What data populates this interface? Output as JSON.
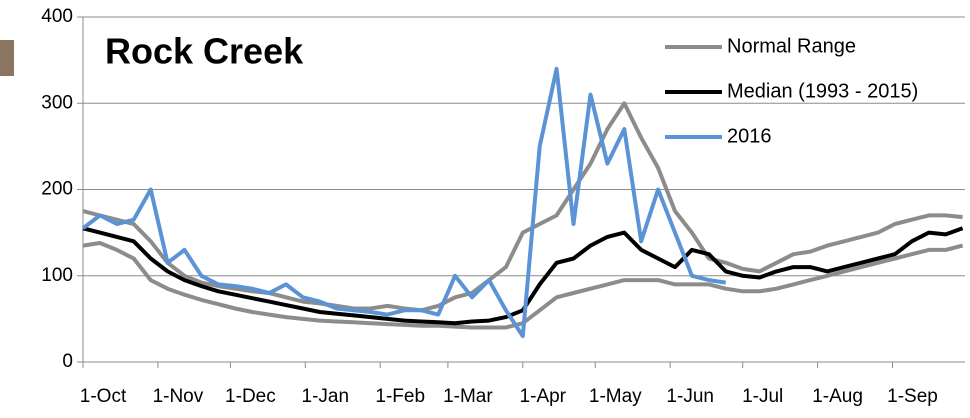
{
  "chart_data": {
    "type": "line",
    "title": "Rock Creek",
    "x": [
      0,
      7,
      14,
      21,
      28,
      35,
      42,
      49,
      56,
      63,
      70,
      77,
      84,
      91,
      98,
      105,
      112,
      119,
      126,
      133,
      140,
      147,
      154,
      161,
      168,
      175,
      182,
      189,
      196,
      203,
      210,
      217,
      224,
      231,
      238,
      245,
      252,
      259,
      266,
      273,
      280,
      287,
      294,
      301,
      308,
      315,
      322,
      329,
      336,
      343,
      350,
      357,
      364
    ],
    "xlim": [
      0,
      365
    ],
    "xticks": [
      {
        "value": 0,
        "label": "1-Oct"
      },
      {
        "value": 31,
        "label": "1-Nov"
      },
      {
        "value": 61,
        "label": "1-Dec"
      },
      {
        "value": 92,
        "label": "1-Jan"
      },
      {
        "value": 123,
        "label": "1-Feb"
      },
      {
        "value": 151,
        "label": "1-Mar"
      },
      {
        "value": 182,
        "label": "1-Apr"
      },
      {
        "value": 212,
        "label": "1-May"
      },
      {
        "value": 243,
        "label": "1-Jun"
      },
      {
        "value": 273,
        "label": "1-Jul"
      },
      {
        "value": 304,
        "label": "1-Aug"
      },
      {
        "value": 335,
        "label": "1-Sep"
      }
    ],
    "ylim": [
      0,
      400
    ],
    "yticks": [
      0,
      100,
      200,
      300,
      400
    ],
    "grid": true,
    "legend": "top-right",
    "series": [
      {
        "name": "Normal Range",
        "color": "#8c8c8c",
        "values": [
          175,
          170,
          165,
          160,
          140,
          115,
          100,
          92,
          88,
          85,
          82,
          80,
          75,
          70,
          68,
          65,
          62,
          62,
          65,
          62,
          60,
          65,
          75,
          80,
          95,
          110,
          150,
          160,
          170,
          200,
          230,
          270,
          300,
          260,
          225,
          175,
          150,
          120,
          115,
          108,
          105,
          115,
          125,
          128,
          135,
          140,
          145,
          150,
          160,
          165,
          170,
          170,
          168
        ],
        "lower": [
          135,
          138,
          130,
          120,
          95,
          85,
          78,
          72,
          67,
          62,
          58,
          55,
          52,
          50,
          48,
          47,
          46,
          45,
          44,
          43,
          42,
          42,
          41,
          40,
          40,
          40,
          45,
          60,
          75,
          80,
          85,
          90,
          95,
          95,
          95,
          90,
          90,
          90,
          85,
          82,
          82,
          85,
          90,
          95,
          100,
          105,
          110,
          115,
          120,
          125,
          130,
          130,
          135
        ]
      },
      {
        "name": "Median (1993 - 2015)",
        "color": "#000000",
        "values": [
          155,
          150,
          145,
          140,
          120,
          105,
          95,
          88,
          82,
          78,
          74,
          70,
          66,
          62,
          58,
          56,
          54,
          52,
          50,
          48,
          47,
          46,
          45,
          47,
          48,
          52,
          60,
          90,
          115,
          120,
          135,
          145,
          150,
          130,
          120,
          110,
          130,
          125,
          105,
          100,
          98,
          105,
          110,
          110,
          105,
          110,
          115,
          120,
          125,
          140,
          150,
          148,
          155
        ]
      },
      {
        "name": "2016",
        "color": "#5b93d6",
        "values": [
          155,
          170,
          160,
          165,
          200,
          115,
          130,
          100,
          90,
          88,
          85,
          80,
          90,
          75,
          70,
          62,
          60,
          58,
          55,
          60,
          60,
          55,
          100,
          75,
          95,
          60,
          30,
          250,
          340,
          160,
          310,
          230,
          270,
          140,
          200,
          150,
          100,
          95,
          92,
          null,
          null,
          null,
          null,
          null,
          null,
          null,
          null,
          null,
          null,
          null,
          null,
          null,
          null
        ]
      }
    ]
  }
}
